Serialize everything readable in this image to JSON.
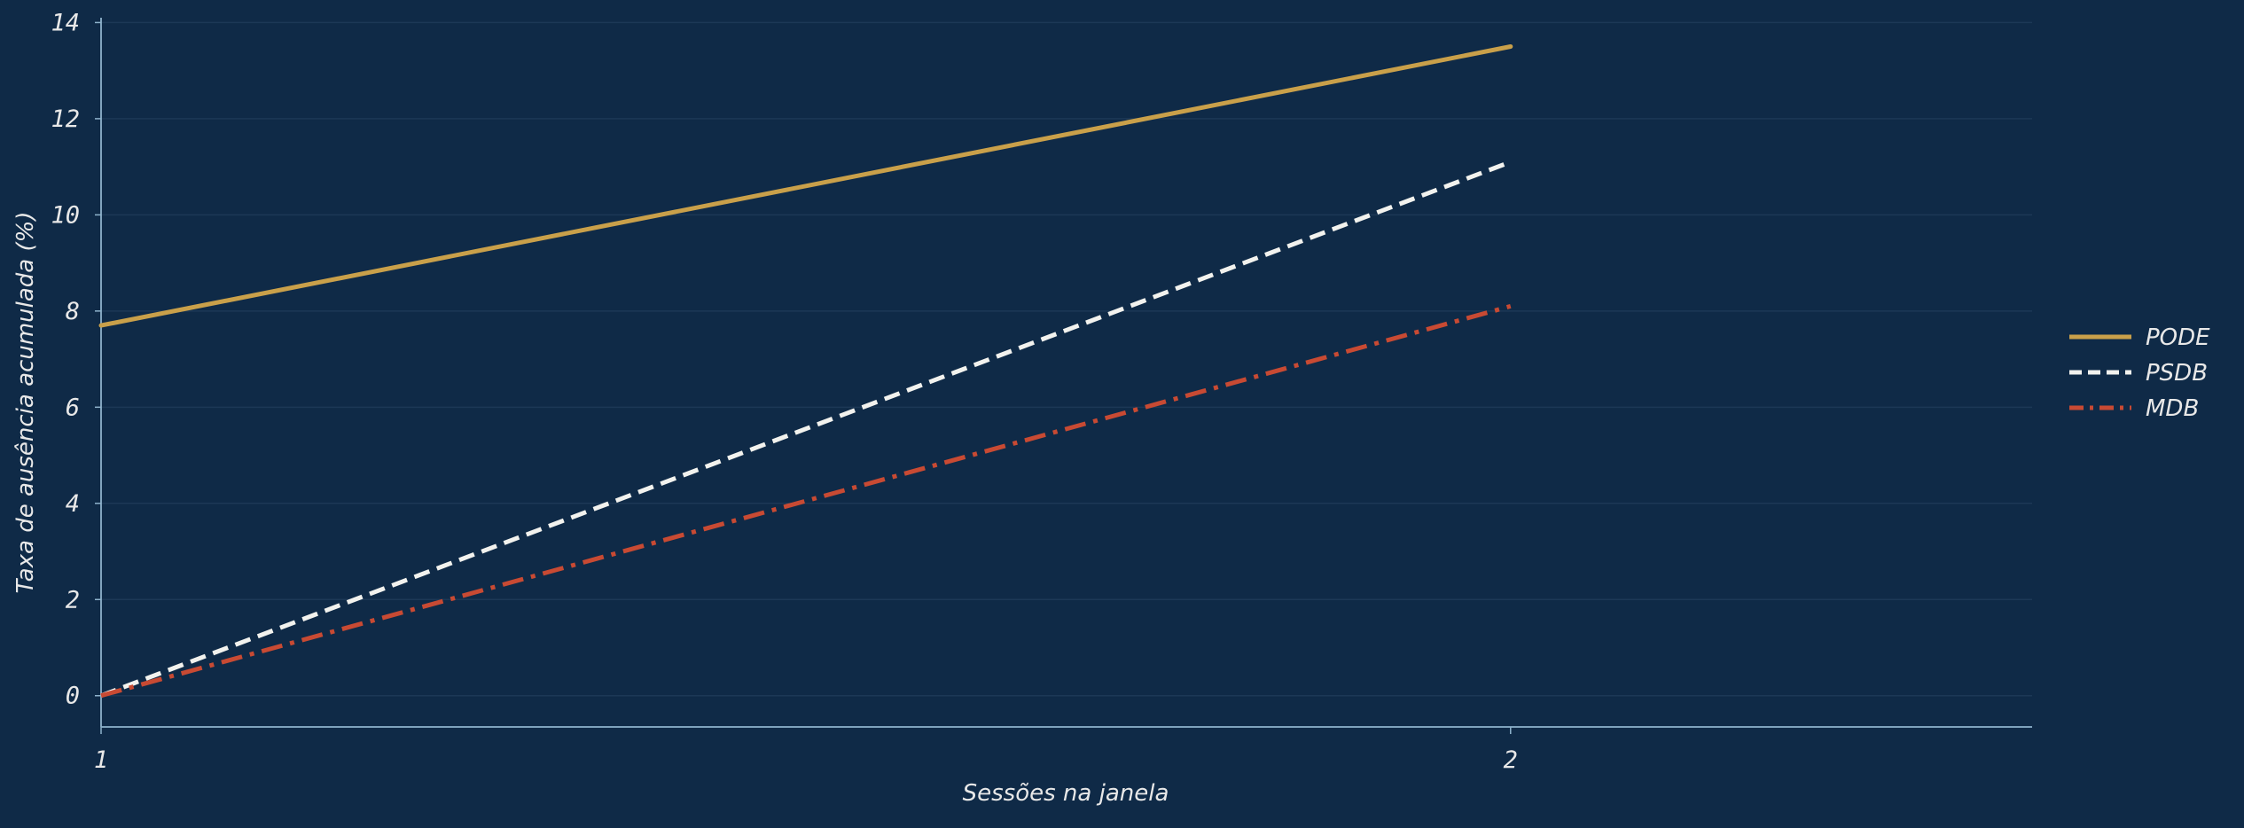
{
  "chart_data": {
    "type": "line",
    "xlabel": "Sessões na janela",
    "ylabel": "Taxa de ausência acumulada (%)",
    "x": [
      1,
      2
    ],
    "xticks": [
      "1",
      "2"
    ],
    "xlim": [
      1,
      2.37
    ],
    "ylim": [
      -0.65,
      14.1
    ],
    "yticks": [
      0,
      2,
      4,
      6,
      8,
      10,
      12,
      14
    ],
    "grid": true,
    "legend_position": "right",
    "series": [
      {
        "name": "PODE",
        "values": [
          7.7,
          13.5
        ],
        "color": "#c9a04a",
        "dash": "solid"
      },
      {
        "name": "PSDB",
        "values": [
          0.0,
          11.1
        ],
        "color": "#f2f2ee",
        "dash": "dashed"
      },
      {
        "name": "MDB",
        "values": [
          0.0,
          8.1
        ],
        "color": "#c84a33",
        "dash": "dashdot"
      }
    ],
    "colors": {
      "background": "#0f2a47",
      "grid": "#1c3856",
      "axis": "#8fb3cc",
      "text": "#e8e8e8"
    }
  }
}
